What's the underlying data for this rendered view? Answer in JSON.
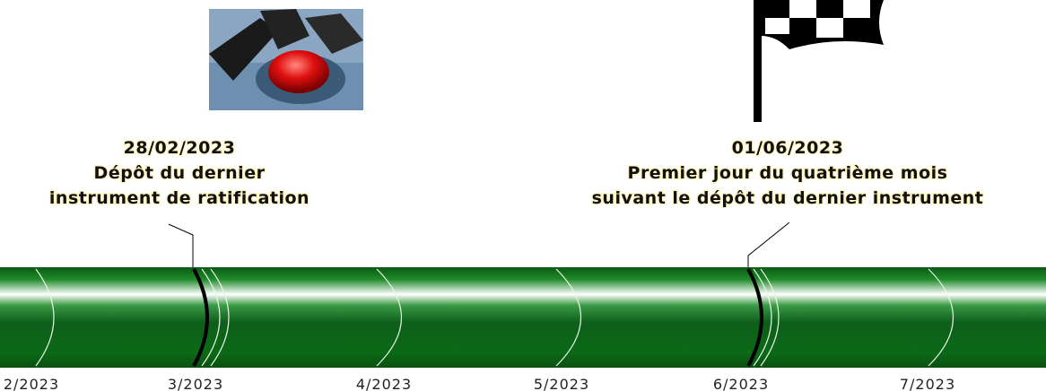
{
  "timeline": {
    "months": [
      "2/2023",
      "3/2023",
      "4/2023",
      "5/2023",
      "6/2023",
      "7/2023"
    ],
    "events": [
      {
        "date": "28/02/2023",
        "lines": [
          "Dépôt du dernier",
          "instrument de ratification"
        ]
      },
      {
        "date": "01/06/2023",
        "lines": [
          "Premier jour du quatrième mois",
          "suivant le dépôt du dernier instrument"
        ]
      }
    ]
  }
}
